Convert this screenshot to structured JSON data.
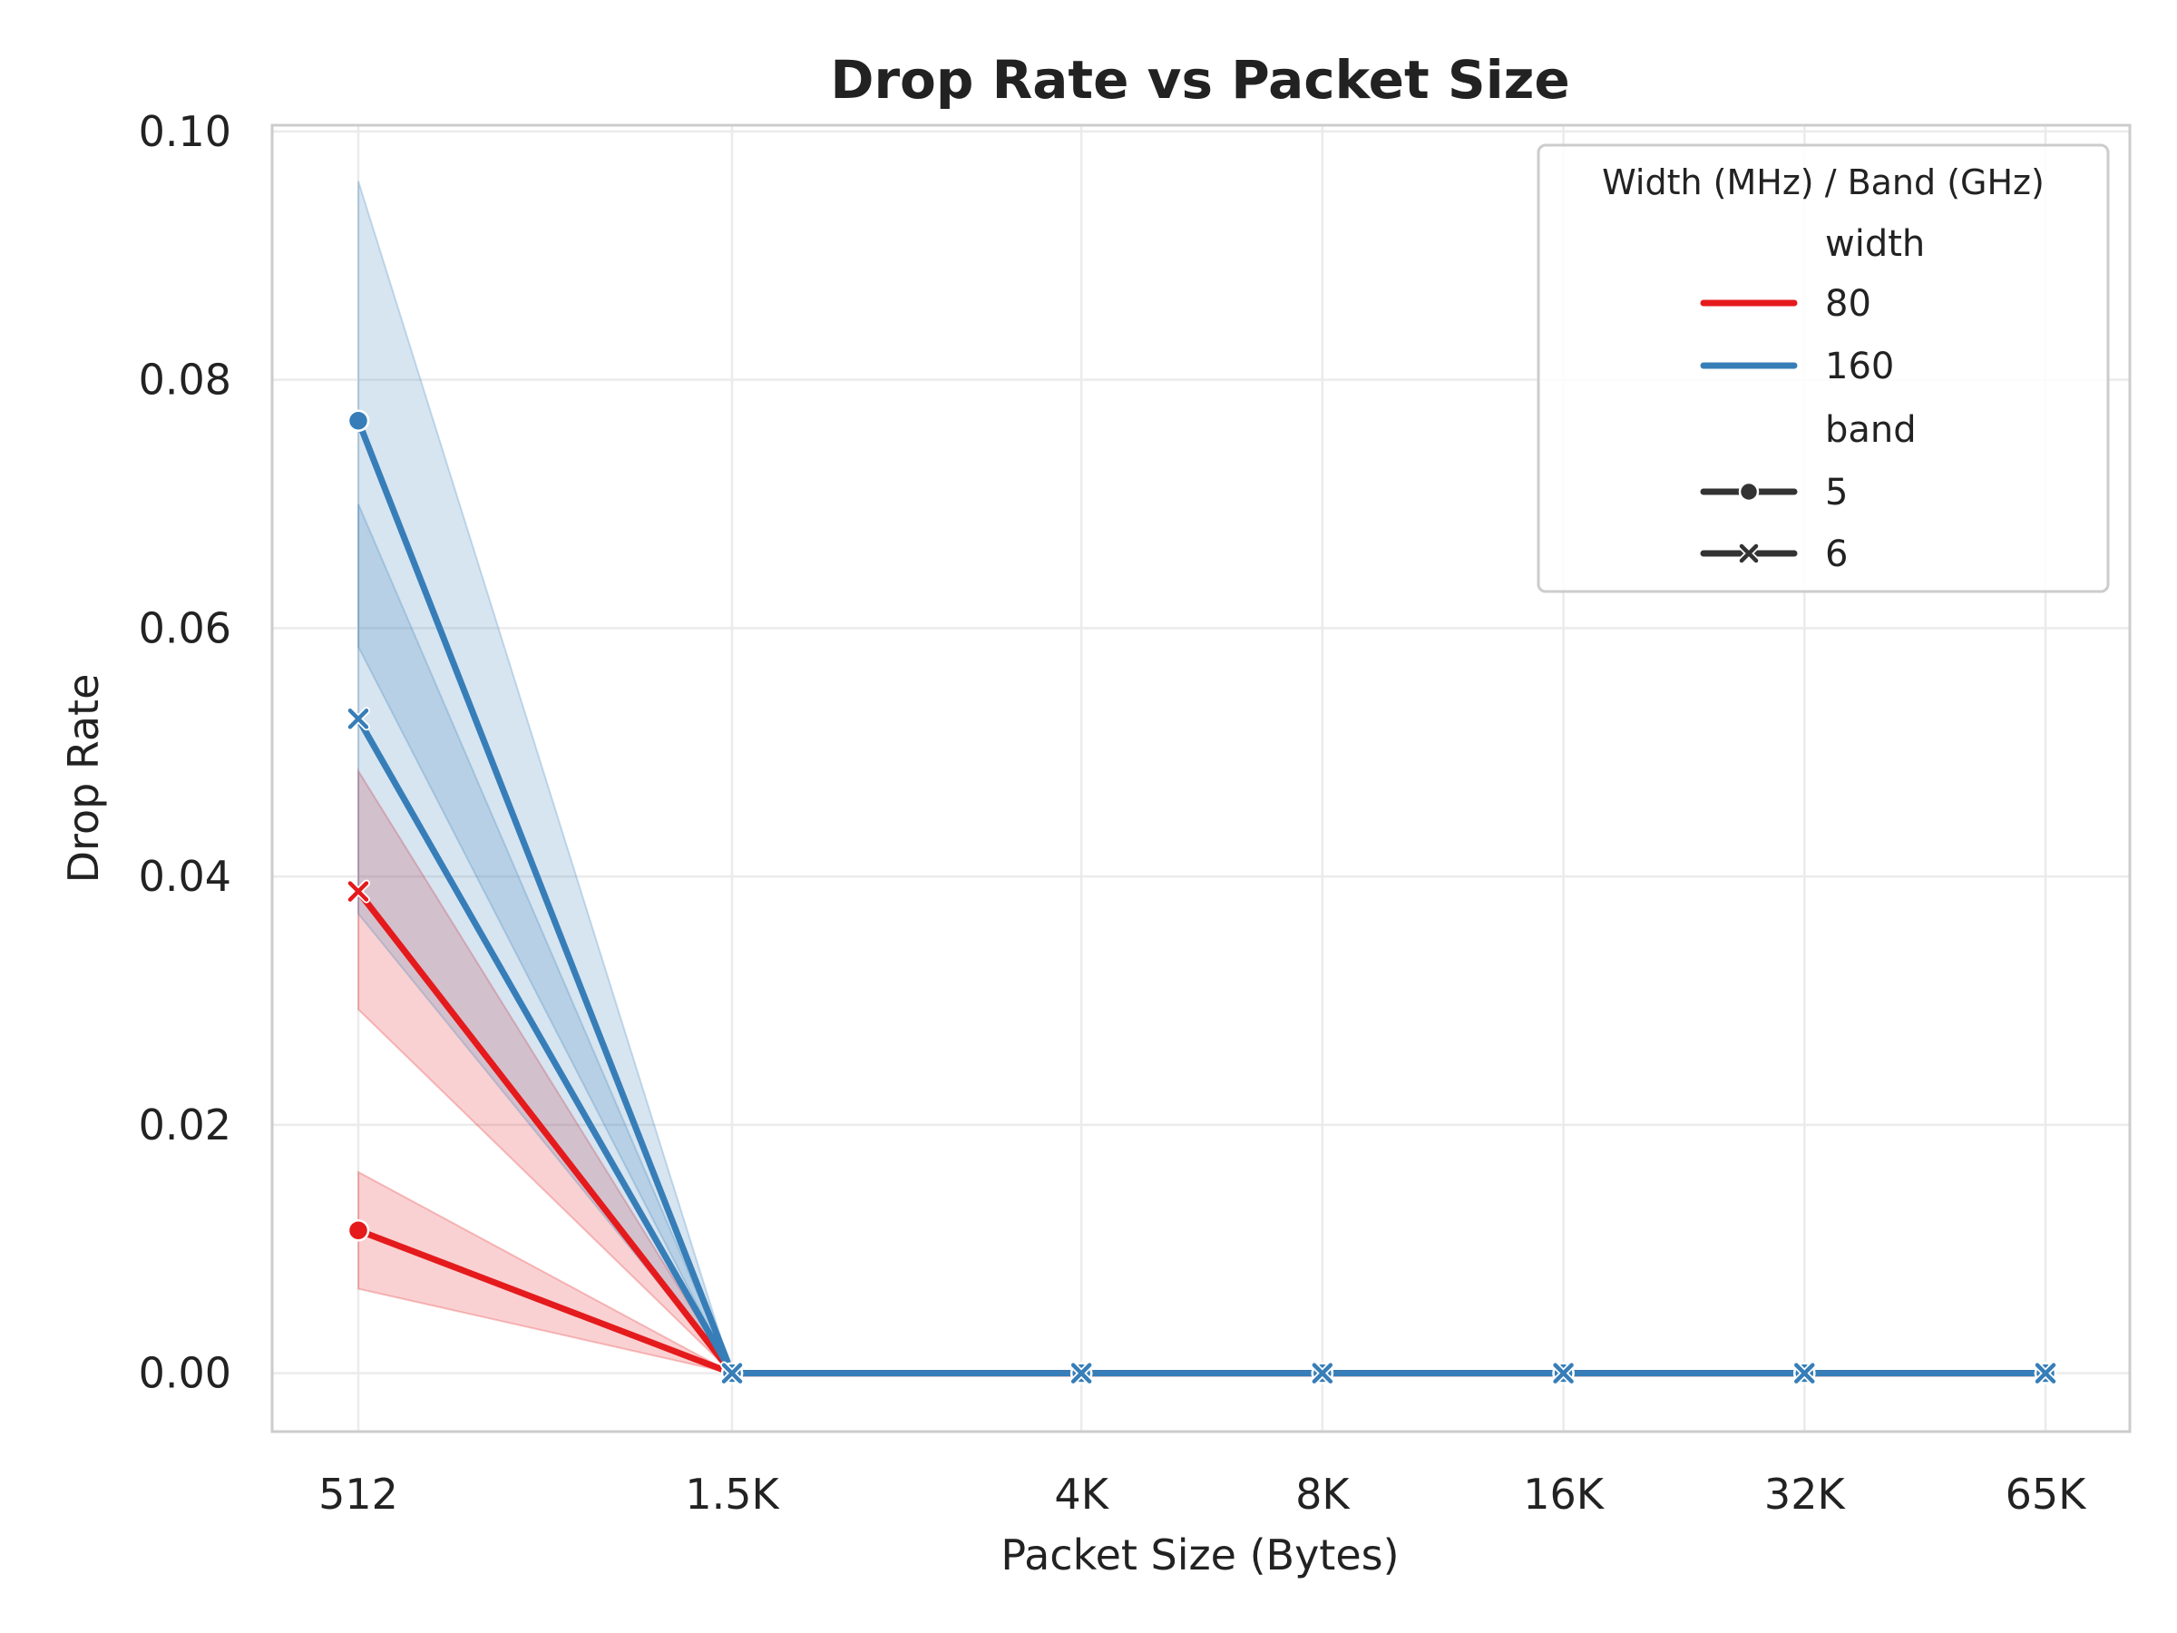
{
  "chart_data": {
    "type": "line",
    "title": "Drop Rate vs Packet Size",
    "xlabel": "Packet Size (Bytes)",
    "ylabel": "Drop Rate",
    "categories": [
      "512",
      "1.5K",
      "4K",
      "8K",
      "16K",
      "32K",
      "65K"
    ],
    "x_values": [
      512,
      1500,
      4096,
      8192,
      16384,
      32768,
      65536
    ],
    "x_scale": "log",
    "ylim": [
      -0.0047,
      0.1005
    ],
    "yticks": [
      "0.00",
      "0.02",
      "0.04",
      "0.06",
      "0.08",
      "0.10"
    ],
    "ytick_values": [
      0,
      0.02,
      0.04,
      0.06,
      0.08,
      0.1
    ],
    "grid": true,
    "legend": {
      "title": "Width (MHz) / Band (GHz)",
      "placement": "top-right",
      "width_header": "width",
      "band_header": "band",
      "width_entries": [
        {
          "label": "80",
          "color": "#e41a1c"
        },
        {
          "label": "160",
          "color": "#377eb8"
        }
      ],
      "band_entries": [
        {
          "label": "5",
          "marker": "circle"
        },
        {
          "label": "6",
          "marker": "x"
        }
      ]
    },
    "series": [
      {
        "width": "80",
        "band": "5",
        "color": "#e41a1c",
        "marker": "circle",
        "values": [
          0.0115,
          0,
          0,
          0,
          0,
          0,
          0
        ],
        "ci_low": [
          0.0068,
          0,
          0,
          0,
          0,
          0,
          0
        ],
        "ci_high": [
          0.0162,
          0,
          0,
          0,
          0,
          0,
          0
        ]
      },
      {
        "width": "80",
        "band": "6",
        "color": "#e41a1c",
        "marker": "x",
        "values": [
          0.0388,
          0,
          0,
          0,
          0,
          0,
          0
        ],
        "ci_low": [
          0.0293,
          0,
          0,
          0,
          0,
          0,
          0
        ],
        "ci_high": [
          0.0485,
          0,
          0,
          0,
          0,
          0,
          0
        ]
      },
      {
        "width": "160",
        "band": "5",
        "color": "#377eb8",
        "marker": "circle",
        "values": [
          0.0767,
          0,
          0,
          0,
          0,
          0,
          0
        ],
        "ci_low": [
          0.0585,
          0,
          0,
          0,
          0,
          0,
          0
        ],
        "ci_high": [
          0.096,
          0,
          0,
          0,
          0,
          0,
          0
        ]
      },
      {
        "width": "160",
        "band": "6",
        "color": "#377eb8",
        "marker": "x",
        "values": [
          0.0527,
          0,
          0,
          0,
          0,
          0,
          0
        ],
        "ci_low": [
          0.037,
          0,
          0,
          0,
          0,
          0,
          0
        ],
        "ci_high": [
          0.07,
          0,
          0,
          0,
          0,
          0,
          0
        ]
      }
    ]
  }
}
